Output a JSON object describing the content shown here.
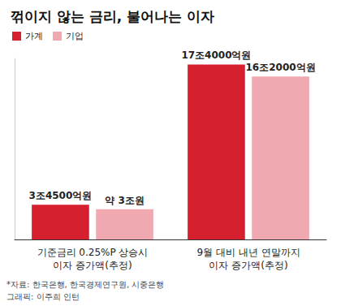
{
  "chart_data": {
    "type": "bar",
    "title": "꺾이지 않는 금리, 불어나는 이자",
    "categories": [
      "기준금리 0.25%P 상승시 이자 증가액(추정)",
      "9월 대비 내년 연말까지 이자 증가액(추정)"
    ],
    "series": [
      {
        "name": "가계",
        "color": "#d7202e",
        "values": [
          3.45,
          17.4
        ],
        "value_labels": [
          "3조4500억원",
          "17조4000억원"
        ]
      },
      {
        "name": "기업",
        "color": "#f0a9b0",
        "values": [
          3,
          16.2
        ],
        "value_labels": [
          "약 3조원",
          "16조2000억원"
        ]
      }
    ],
    "ylim": [
      0,
      18
    ],
    "grid": false,
    "legend": "top-left",
    "data_labels": true,
    "tick_labels": "x",
    "source": "*자료: 한국은행, 한국경제연구원, 시중은행",
    "credit": "그래픽: 이주희 인턴"
  }
}
